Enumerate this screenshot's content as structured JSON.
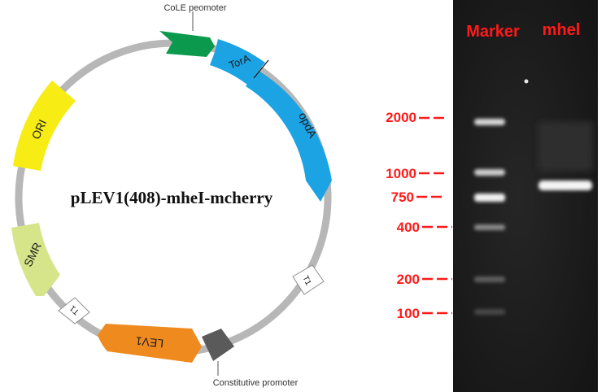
{
  "plasmid": {
    "title": "pLEV1(408)-mheI-mcherry",
    "callouts": {
      "top": "CoLE peomoter",
      "bottom": "Constitutive promoter"
    },
    "features": [
      {
        "key": "tora",
        "label": "TorA",
        "color": "#1ba3e4"
      },
      {
        "key": "opda",
        "label": "opdA",
        "color": "#1ba3e4"
      },
      {
        "key": "t1_right",
        "label": "T1",
        "color": "#ffffff"
      },
      {
        "key": "lev1",
        "label": "LEV1",
        "color": "#ef8a1e"
      },
      {
        "key": "t1_left",
        "label": "T1",
        "color": "#ffffff"
      },
      {
        "key": "smr",
        "label": "SMR",
        "color": "#d6e58a"
      },
      {
        "key": "ori",
        "label": "ORI",
        "color": "#f7ec13"
      },
      {
        "key": "cole",
        "label": "",
        "color": "#0b9a4d"
      },
      {
        "key": "const",
        "label": "",
        "color": "#5f5f5f"
      }
    ],
    "backbone_color": "#b7b7b7"
  },
  "gel": {
    "lane_labels": {
      "marker": "Marker",
      "sample": "mhel"
    },
    "ladder": [
      {
        "bp": 2000,
        "label": "2000"
      },
      {
        "bp": 1000,
        "label": "1000"
      },
      {
        "bp": 750,
        "label": "750"
      },
      {
        "bp": 400,
        "label": "400"
      },
      {
        "bp": 200,
        "label": "200"
      },
      {
        "bp": 100,
        "label": "100"
      }
    ],
    "label_color": "#ff1a1a",
    "background_color": "#1c1c1c"
  }
}
